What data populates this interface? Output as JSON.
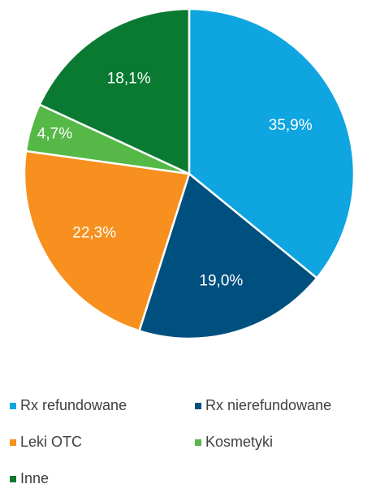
{
  "chart_data": {
    "type": "pie",
    "categories": [
      "Rx refundowane",
      "Rx nierefundowane",
      "Leki OTC",
      "Kosmetyki",
      "Inne"
    ],
    "values": [
      35.9,
      19.0,
      22.3,
      4.7,
      18.1
    ],
    "value_labels": [
      "35,9%",
      "19,0%",
      "22,3%",
      "4,7%",
      "18,1%"
    ],
    "colors": [
      "#0ea5e0",
      "#00507f",
      "#f7901e",
      "#55b847",
      "#0a7a33"
    ],
    "legend": "bottom"
  }
}
